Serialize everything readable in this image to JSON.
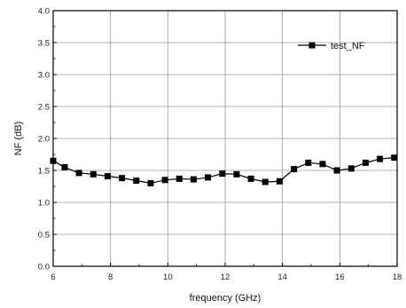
{
  "chart_data": {
    "type": "line",
    "title": "",
    "xlabel": "frequency (GHz)",
    "ylabel": "NF (dB)",
    "xlim": [
      6,
      18
    ],
    "ylim": [
      0.0,
      4.0
    ],
    "xticks": [
      "6",
      "8",
      "10",
      "12",
      "14",
      "16",
      "18"
    ],
    "yticks": [
      "0.0",
      "0.5",
      "1.0",
      "1.5",
      "2.0",
      "2.5",
      "3.0",
      "3.5",
      "4.0"
    ],
    "grid": true,
    "legend_position": "top-right",
    "series": [
      {
        "name": "test_NF",
        "color": "#000000",
        "marker": "square",
        "x": [
          6.0,
          6.4,
          6.9,
          7.4,
          7.9,
          8.4,
          8.9,
          9.4,
          9.9,
          10.4,
          10.9,
          11.4,
          11.9,
          12.4,
          12.9,
          13.4,
          13.9,
          14.4,
          14.9,
          15.4,
          15.9,
          16.4,
          16.9,
          17.4,
          17.9
        ],
        "y": [
          1.65,
          1.55,
          1.46,
          1.44,
          1.41,
          1.38,
          1.34,
          1.3,
          1.35,
          1.37,
          1.36,
          1.39,
          1.45,
          1.44,
          1.37,
          1.32,
          1.33,
          1.52,
          1.62,
          1.6,
          1.5,
          1.53,
          1.62,
          1.68,
          1.7
        ]
      }
    ]
  }
}
